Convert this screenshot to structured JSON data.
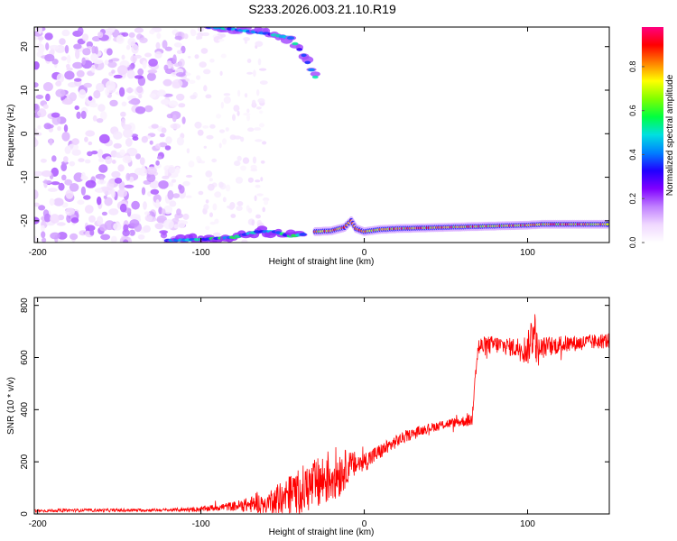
{
  "title": "S233.2026.003.21.10.R19",
  "chart_data": [
    {
      "type": "heatmap",
      "xlabel": "Height of straight line (km)",
      "ylabel": "Frequency (Hz)",
      "xlim": [
        -202,
        150
      ],
      "ylim": [
        -25,
        24.5
      ],
      "xticks": [
        -200,
        -100,
        0,
        100
      ],
      "yticks": [
        -20,
        -10,
        0,
        10,
        20
      ],
      "colorbar": {
        "label": "Normalized spectral amplitude",
        "range": [
          0,
          1
        ],
        "ticks": [
          "0.0",
          "0.2",
          "0.4",
          "0.6",
          "0.8"
        ],
        "colormap": [
          "#ffffff",
          "#f0d8ff",
          "#c080ff",
          "#8000ff",
          "#2000ff",
          "#0080ff",
          "#00e0e0",
          "#00ff40",
          "#80ff00",
          "#ffff00",
          "#ff8000",
          "#ff0000",
          "#ff0080"
        ]
      },
      "features": {
        "line_track": {
          "description_points": [
            [
              -30,
              -22.5
            ],
            [
              -20,
              -22.3
            ],
            [
              -12,
              -21.5
            ],
            [
              -8,
              -20
            ],
            [
              -5,
              -21.8
            ],
            [
              0,
              -22.5
            ],
            [
              10,
              -22
            ],
            [
              20,
              -21.8
            ],
            [
              40,
              -21.6
            ],
            [
              60,
              -21.4
            ],
            [
              80,
              -21.2
            ],
            [
              100,
              -21
            ],
            [
              110,
              -20.8
            ],
            [
              130,
              -20.8
            ],
            [
              150,
              -20.8
            ]
          ],
          "peak_amplitude": 0.95
        },
        "noise_region_x": [
          -202,
          -110
        ],
        "sparse_region_x": [
          -110,
          -60
        ],
        "lower_arc": [
          [
            -120,
            -24.5
          ],
          [
            -100,
            -24.3
          ],
          [
            -80,
            -23.8
          ],
          [
            -65,
            -22.5
          ],
          [
            -55,
            -22.5
          ],
          [
            -45,
            -23.5
          ],
          [
            -35,
            -23
          ]
        ],
        "upper_arc": [
          [
            -95,
            24.5
          ],
          [
            -80,
            24
          ],
          [
            -60,
            23
          ],
          [
            -45,
            22
          ],
          [
            -37,
            18
          ],
          [
            -30,
            13
          ],
          [
            -28,
            24
          ]
        ]
      }
    },
    {
      "type": "line",
      "xlabel": "Height of straight line (km)",
      "ylabel": "SNR (10 * v/v)",
      "xlim": [
        -202,
        150
      ],
      "ylim": [
        0,
        830
      ],
      "xticks": [
        -200,
        -100,
        0,
        100
      ],
      "yticks": [
        0,
        200,
        400,
        600,
        800
      ],
      "color": "#ff0000",
      "series": [
        {
          "x": [
            -202,
            -180,
            -150,
            -120,
            -100,
            -90,
            -80,
            -70,
            -60,
            -50,
            -40,
            -30,
            -20,
            -15,
            -10,
            0,
            10,
            20,
            30,
            40,
            50,
            60,
            66,
            68,
            70,
            80,
            90,
            100,
            104,
            106,
            110,
            120,
            130,
            140,
            150
          ],
          "values": [
            12,
            14,
            14,
            15,
            18,
            25,
            30,
            35,
            45,
            60,
            90,
            110,
            150,
            160,
            180,
            200,
            240,
            280,
            310,
            330,
            345,
            355,
            360,
            560,
            640,
            650,
            640,
            630,
            720,
            620,
            640,
            650,
            655,
            660,
            665
          ],
          "noise_amplitude": [
            6,
            6,
            6,
            6,
            10,
            14,
            18,
            30,
            45,
            70,
            90,
            100,
            110,
            100,
            60,
            40,
            30,
            25,
            20,
            18,
            18,
            20,
            25,
            40,
            40,
            35,
            35,
            60,
            110,
            60,
            40,
            35,
            30,
            30,
            30
          ]
        }
      ]
    }
  ]
}
